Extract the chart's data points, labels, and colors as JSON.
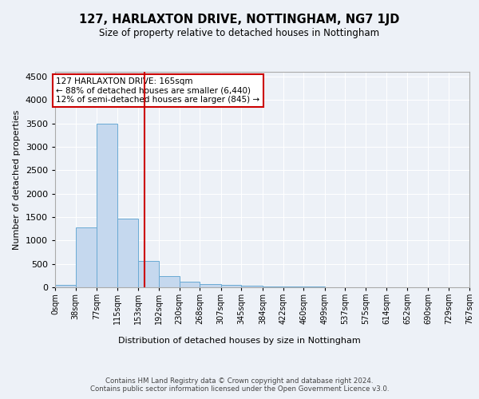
{
  "title": "127, HARLAXTON DRIVE, NOTTINGHAM, NG7 1JD",
  "subtitle": "Size of property relative to detached houses in Nottingham",
  "xlabel": "Distribution of detached houses by size in Nottingham",
  "ylabel": "Number of detached properties",
  "bin_edges": [
    0,
    38,
    77,
    115,
    153,
    192,
    230,
    268,
    307,
    345,
    384,
    422,
    460,
    499,
    537,
    575,
    614,
    652,
    690,
    729,
    767
  ],
  "bin_counts": [
    50,
    1270,
    3500,
    1460,
    560,
    240,
    120,
    70,
    50,
    30,
    20,
    15,
    10,
    8,
    6,
    4,
    3,
    2,
    2,
    2
  ],
  "property_size": 165,
  "bar_color": "#c5d8ee",
  "bar_edge_color": "#6aaad4",
  "vline_color": "#cc0000",
  "annotation_text": "127 HARLAXTON DRIVE: 165sqm\n← 88% of detached houses are smaller (6,440)\n12% of semi-detached houses are larger (845) →",
  "annotation_box_color": "white",
  "annotation_box_edge_color": "#cc0000",
  "ylim": [
    0,
    4600
  ],
  "yticks": [
    0,
    500,
    1000,
    1500,
    2000,
    2500,
    3000,
    3500,
    4000,
    4500
  ],
  "footer_text": "Contains HM Land Registry data © Crown copyright and database right 2024.\nContains public sector information licensed under the Open Government Licence v3.0.",
  "background_color": "#edf1f7",
  "plot_bg_color": "#edf1f7",
  "grid_color": "#ffffff",
  "spine_color": "#aaaaaa"
}
